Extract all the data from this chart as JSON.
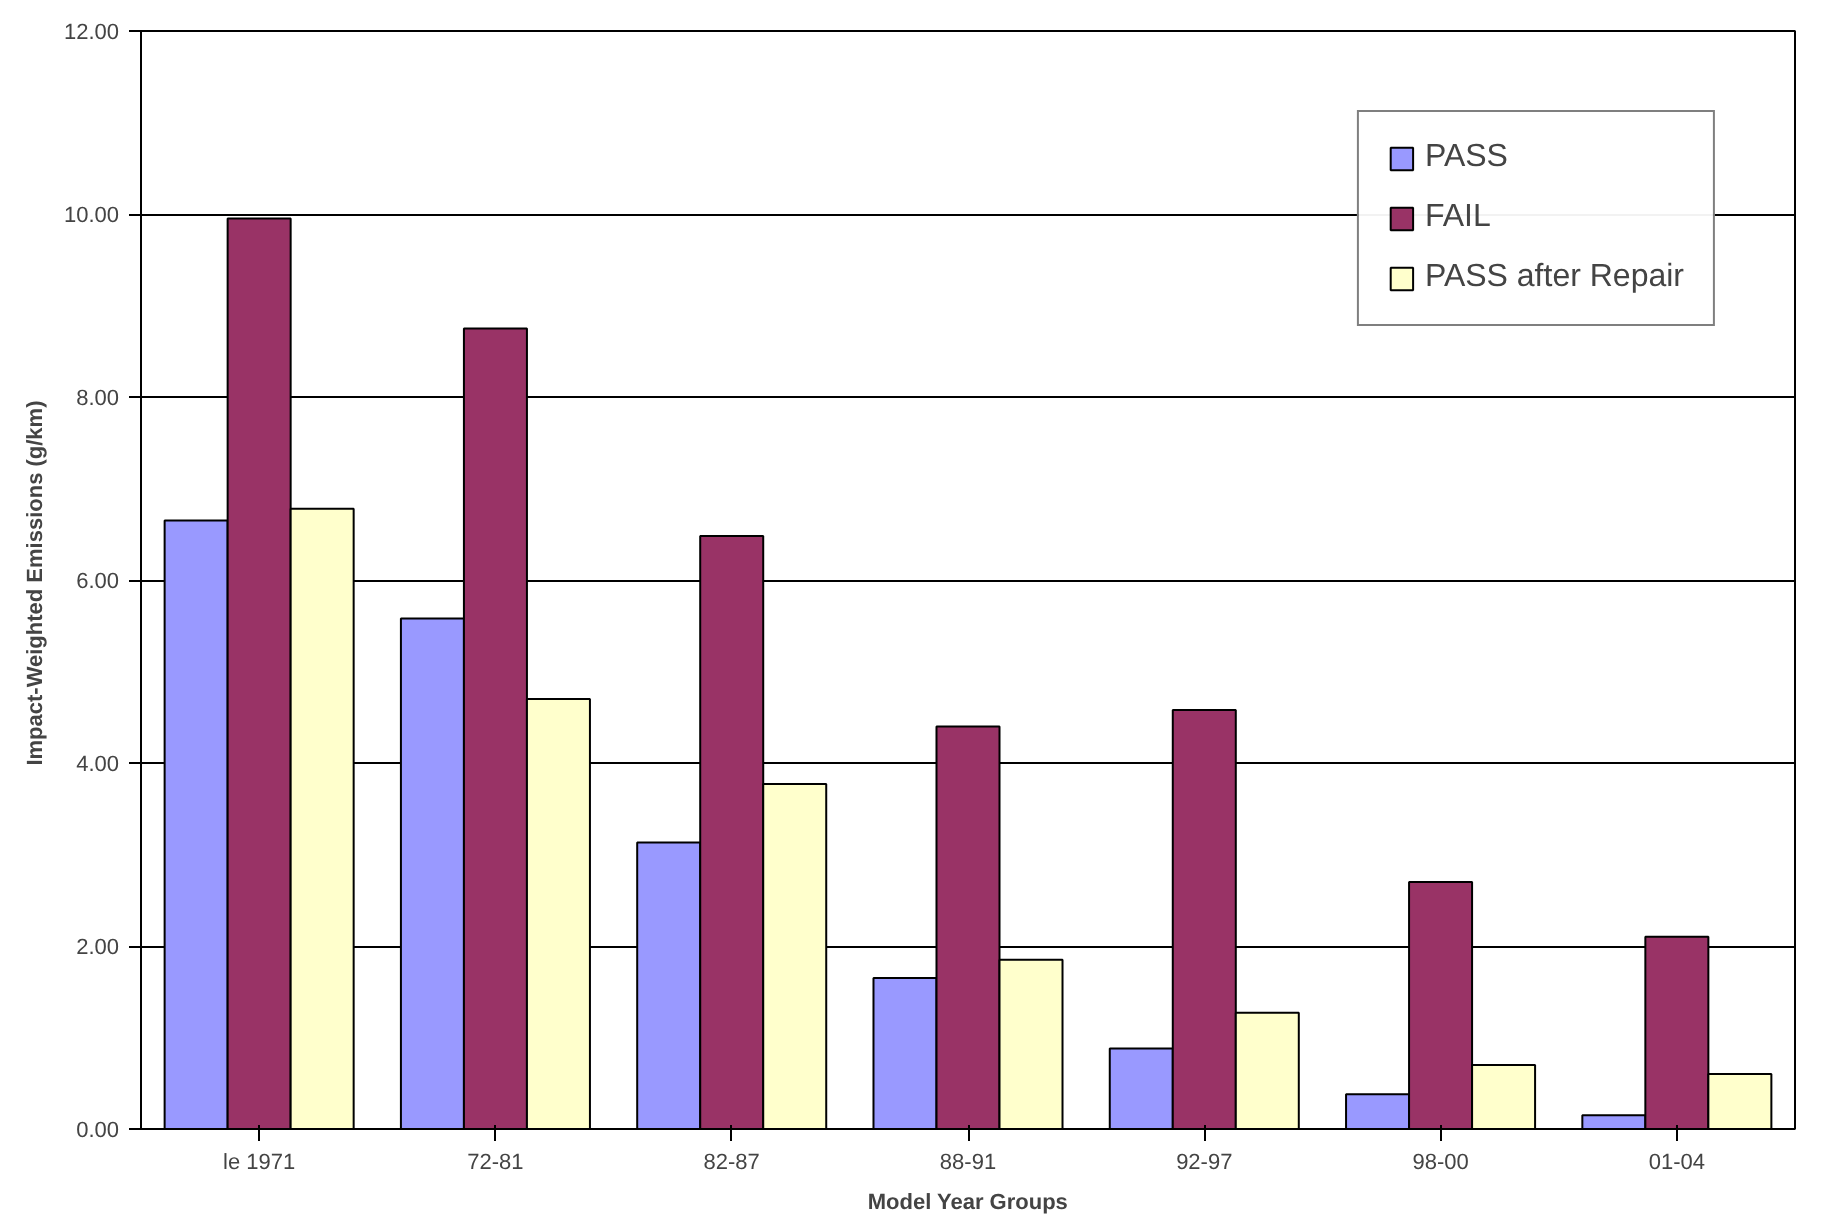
{
  "chart_data": {
    "type": "bar",
    "xlabel": "Model Year Groups",
    "ylabel": "Impact-Weighted Emissions  (g/km)",
    "categories": [
      "le 1971",
      "72-81",
      "82-87",
      "88-91",
      "92-97",
      "98-00",
      "01-04"
    ],
    "series": [
      {
        "name": "PASS",
        "color": "#9999ff",
        "values": [
          6.65,
          5.58,
          3.13,
          1.65,
          0.88,
          0.38,
          0.15
        ]
      },
      {
        "name": "FAIL",
        "color": "#993366",
        "values": [
          9.95,
          8.75,
          6.48,
          4.4,
          4.58,
          2.7,
          2.1
        ]
      },
      {
        "name": "PASS after Repair",
        "color": "#ffffcc",
        "values": [
          6.78,
          4.7,
          3.77,
          1.85,
          1.27,
          0.7,
          0.6
        ]
      }
    ],
    "ylim": [
      0,
      12
    ],
    "yticks": [
      {
        "value": 0,
        "label": "0.00"
      },
      {
        "value": 2,
        "label": "2.00"
      },
      {
        "value": 4,
        "label": "4.00"
      },
      {
        "value": 6,
        "label": "6.00"
      },
      {
        "value": 8,
        "label": "8.00"
      },
      {
        "value": 10,
        "label": "10.00"
      },
      {
        "value": 12,
        "label": "12.00"
      }
    ],
    "grid": "y",
    "legend": "top right"
  }
}
